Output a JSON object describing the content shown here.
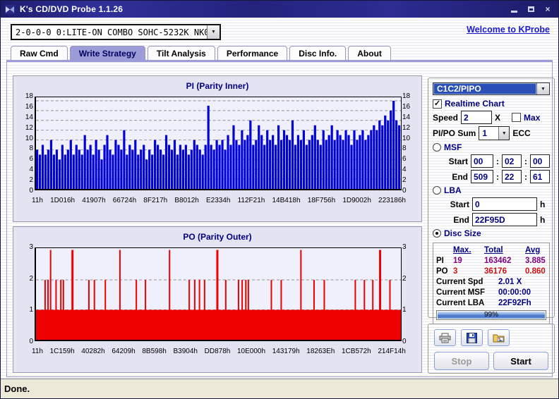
{
  "window": {
    "title": "K's CD/DVD Probe 1.1.26"
  },
  "titlebar": {
    "minimize_glyph": "",
    "close_glyph": "×"
  },
  "drive_selector": {
    "value": "2-0-0-0 0:LITE-ON COMBO SOHC-5232K NK07"
  },
  "welcome_link": {
    "label": "Welcome to KProbe"
  },
  "tabs": [
    {
      "label": "Raw Cmd"
    },
    {
      "label": "Write Strategy"
    },
    {
      "label": "Tilt Analysis"
    },
    {
      "label": "Performance"
    },
    {
      "label": "Disc Info."
    },
    {
      "label": "About"
    }
  ],
  "controls": {
    "mode_combo": "C1C2/PIPO",
    "realtime_chart": "Realtime Chart",
    "speed_label": "Speed",
    "speed_value": "2",
    "speed_unit": "X",
    "max_label": "Max",
    "sum_label": "PI/PO Sum",
    "sum_value": "1",
    "sum_unit": "ECC",
    "msf_label": "MSF",
    "start_label": "Start",
    "end_label": "End",
    "msf_start": [
      "00",
      "02",
      "00"
    ],
    "msf_end": [
      "509",
      "22",
      "61"
    ],
    "lba_label": "LBA",
    "lba_start": "0",
    "lba_end": "22F95D",
    "hex_suffix": "h",
    "disc_size_label": "Disc Size"
  },
  "stats": {
    "headers": [
      "Max.",
      "Total",
      "Avg"
    ],
    "pi": {
      "label": "PI",
      "max": "19",
      "total": "163462",
      "avg": "3.885"
    },
    "po": {
      "label": "PO",
      "max": "3",
      "total": "36176",
      "avg": "0.860"
    },
    "current_spd_label": "Current Spd",
    "current_spd": "2.01  X",
    "current_msf_label": "Current MSF",
    "current_msf": "00:00:00",
    "current_lba_label": "Current LBA",
    "current_lba": "22F92Fh",
    "progress": "99%"
  },
  "buttons": {
    "stop": "Stop",
    "start": "Start"
  },
  "status_bar": {
    "text": "Done."
  },
  "chart_data": [
    {
      "type": "bar",
      "title": "PI (Parity Inner)",
      "ylim": [
        0,
        18
      ],
      "y_ticks": [
        18,
        16,
        14,
        12,
        10,
        8,
        6,
        4,
        2,
        0
      ],
      "x_ticks": [
        "11h",
        "1D016h",
        "41907h",
        "66724h",
        "8F217h",
        "B8012h",
        "E2334h",
        "112F21h",
        "14B418h",
        "18F756h",
        "1D9002h",
        "223186h"
      ],
      "grid": "dashed-horizontal",
      "series": [
        {
          "name": "PI",
          "color": "#0000d9",
          "values": [
            8,
            7,
            9,
            7,
            8,
            10,
            7,
            8,
            6,
            9,
            7,
            8,
            10,
            7,
            9,
            8,
            7,
            11,
            8,
            9,
            7,
            10,
            8,
            6,
            9,
            11,
            8,
            7,
            10,
            9,
            8,
            12,
            7,
            9,
            8,
            10,
            7,
            8,
            9,
            6,
            8,
            7,
            10,
            9,
            8,
            7,
            11,
            9,
            8,
            10,
            7,
            9,
            8,
            9,
            7,
            8,
            10,
            9,
            8,
            7,
            9,
            17,
            9,
            8,
            10,
            9,
            10,
            8,
            11,
            9,
            13,
            10,
            9,
            12,
            10,
            11,
            14,
            9,
            10,
            13,
            11,
            9,
            12,
            10,
            11,
            9,
            13,
            10,
            12,
            11,
            10,
            14,
            9,
            11,
            10,
            12,
            9,
            10,
            11,
            13,
            10,
            9,
            12,
            10,
            11,
            13,
            10,
            12,
            11,
            10,
            12,
            11,
            9,
            12,
            10,
            11,
            12,
            10,
            11,
            12,
            13,
            12,
            14,
            13,
            15,
            14,
            16,
            18,
            14,
            13
          ]
        }
      ]
    },
    {
      "type": "bar",
      "title": "PO (Parity Outer)",
      "ylim": [
        0,
        3
      ],
      "y_ticks": [
        3,
        2,
        1,
        0
      ],
      "x_ticks": [
        "11h",
        "1C159h",
        "40282h",
        "64209h",
        "8B598h",
        "B3904h",
        "DD878h",
        "10E000h",
        "143179h",
        "18263Eh",
        "1CB572h",
        "214F14h"
      ],
      "grid": "dashed-horizontal",
      "color": "#ee0000",
      "base_fill": 1,
      "spikes": [
        {
          "x": 0.025,
          "v": 2
        },
        {
          "x": 0.033,
          "v": 2
        },
        {
          "x": 0.04,
          "v": 3
        },
        {
          "x": 0.055,
          "v": 2
        },
        {
          "x": 0.068,
          "v": 2
        },
        {
          "x": 0.075,
          "v": 2
        },
        {
          "x": 0.1,
          "v": 3,
          "w": 3
        },
        {
          "x": 0.145,
          "v": 2
        },
        {
          "x": 0.16,
          "v": 2
        },
        {
          "x": 0.19,
          "v": 2
        },
        {
          "x": 0.23,
          "v": 3
        },
        {
          "x": 0.275,
          "v": 2
        },
        {
          "x": 0.3,
          "v": 2
        },
        {
          "x": 0.366,
          "v": 3
        },
        {
          "x": 0.42,
          "v": 2
        },
        {
          "x": 0.435,
          "v": 2
        },
        {
          "x": 0.448,
          "v": 2
        },
        {
          "x": 0.462,
          "v": 2
        },
        {
          "x": 0.497,
          "v": 3,
          "w": 3
        },
        {
          "x": 0.52,
          "v": 2
        },
        {
          "x": 0.555,
          "v": 2
        },
        {
          "x": 0.565,
          "v": 2
        },
        {
          "x": 0.575,
          "v": 2
        },
        {
          "x": 0.582,
          "v": 2
        },
        {
          "x": 0.645,
          "v": 2
        },
        {
          "x": 0.672,
          "v": 2
        },
        {
          "x": 0.726,
          "v": 3
        },
        {
          "x": 0.762,
          "v": 2
        },
        {
          "x": 0.79,
          "v": 2
        },
        {
          "x": 0.875,
          "v": 2
        },
        {
          "x": 0.9,
          "v": 2
        },
        {
          "x": 0.923,
          "v": 2
        },
        {
          "x": 0.943,
          "v": 3,
          "w": 3
        },
        {
          "x": 0.97,
          "v": 2
        }
      ]
    }
  ]
}
